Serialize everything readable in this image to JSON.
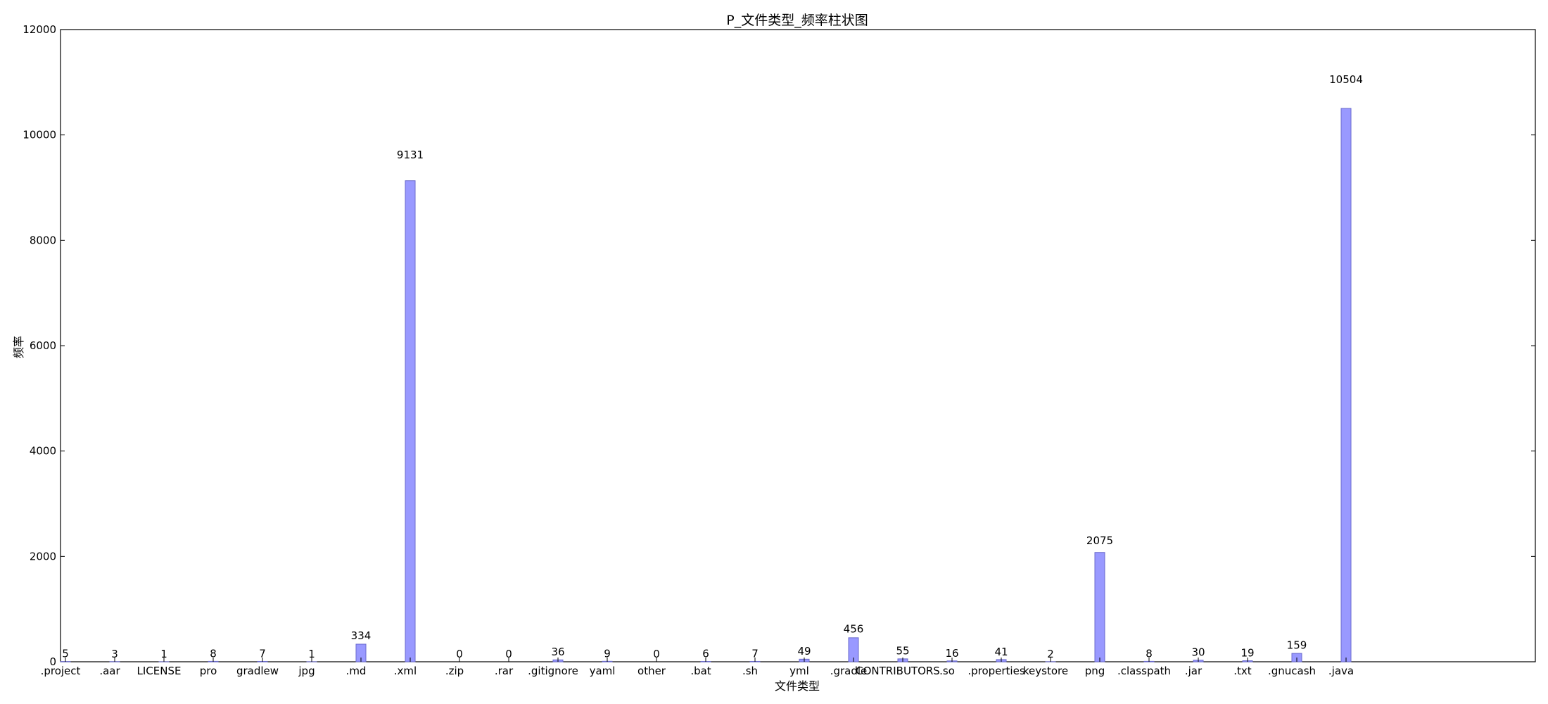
{
  "chart_data": {
    "type": "bar",
    "title": "P_文件类型_频率柱状图",
    "xlabel": "文件类型",
    "ylabel": "频率",
    "ylim": [
      0,
      12000
    ],
    "yticks": [
      0,
      2000,
      4000,
      6000,
      8000,
      10000,
      12000
    ],
    "ytick_labels": [
      "0",
      "2000",
      "4000",
      "6000",
      "8000",
      "10000",
      "12000"
    ],
    "grid": false,
    "colors": {
      "bar": "#9999ff",
      "edge": "#6a6acc"
    },
    "categories": [
      ".project",
      ".aar",
      "LICENSE",
      "pro",
      "gradlew",
      "jpg",
      ".md",
      ".xml",
      ".zip",
      ".rar",
      ".gitignore",
      "yaml",
      "other",
      ".bat",
      ".sh",
      "yml",
      ".gradle",
      "CONTRIBUTORS",
      ".so",
      ".properties",
      "keystore",
      "png",
      ".classpath",
      ".jar",
      ".txt",
      ".gnucash",
      ".java"
    ],
    "values": [
      5,
      3,
      1,
      8,
      7,
      1,
      334,
      9131,
      0,
      0,
      36,
      9,
      0,
      6,
      7,
      49,
      456,
      55,
      16,
      41,
      2,
      2075,
      8,
      30,
      19,
      159,
      10504
    ],
    "value_labels": [
      "5",
      "3",
      "1",
      "8",
      "7",
      "1",
      "334",
      "9131",
      "0",
      "0",
      "36",
      "9",
      "0",
      "6",
      "7",
      "49",
      "456",
      "55",
      "16",
      "41",
      "2",
      "2075",
      "8",
      "30",
      "19",
      "159",
      "10504"
    ]
  }
}
